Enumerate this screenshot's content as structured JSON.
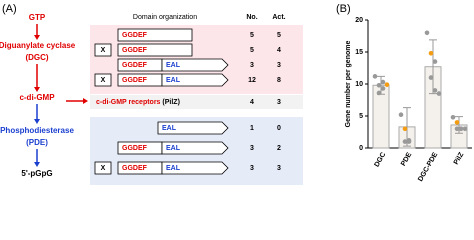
{
  "panel_a": {
    "label": "(A)",
    "pathway": [
      "GTP",
      "Diguanylate cyclase",
      "(DGC)",
      "c-di-GMP",
      "Phosphodiesterase",
      "(PDE)",
      "5'-pGpG"
    ],
    "header": [
      "Domain organization",
      "No.",
      "Act."
    ],
    "dgc_rows": [
      {
        "domains": [
          "GGDEF"
        ],
        "no": "5",
        "act": "5"
      },
      {
        "domains": [
          "X",
          "GGDEF"
        ],
        "no": "5",
        "act": "4"
      },
      {
        "domains": [
          "GGDEF",
          "EAL"
        ],
        "no": "3",
        "act": "3"
      },
      {
        "domains": [
          "X",
          "GGDEF",
          "EAL"
        ],
        "no": "12",
        "act": "8"
      }
    ],
    "receptor_row": {
      "name": "c-di-GMP receptors",
      "domain": "(PilZ)",
      "no": "4",
      "act": "3"
    },
    "pde_rows": [
      {
        "domains": [
          "EAL"
        ],
        "no": "1",
        "act": "0"
      },
      {
        "domains": [
          "GGDEF",
          "EAL"
        ],
        "no": "3",
        "act": "2"
      },
      {
        "domains": [
          "X",
          "GGDEF",
          "EAL"
        ],
        "no": "3",
        "act": "3"
      }
    ]
  },
  "chart_data": {
    "type": "bar",
    "panel_label": "(B)",
    "y_label": "Gene number per genome",
    "categories": [
      "DGC",
      "PDE",
      "DGC-PDE",
      "PilZ"
    ],
    "values": [
      9.8,
      3.3,
      12.7,
      3.6
    ],
    "errors": [
      1.4,
      3.0,
      4.2,
      1.3
    ],
    "points": [
      [
        11.2,
        9.8,
        9.3,
        8.6,
        10.3,
        9.9
      ],
      [
        5.2,
        3.0,
        1.0,
        1.0,
        1.2
      ],
      [
        18.0,
        14.8,
        13.5,
        11.0,
        9.0,
        8.5
      ],
      [
        4.8,
        4.0,
        3.0,
        3.0,
        3.0,
        3.0
      ]
    ],
    "point_colors": [
      [
        "#999",
        "#999",
        "#999",
        "#999",
        "#999",
        "#f39c12"
      ],
      [
        "#999",
        "#f39c12",
        "#999",
        "#999",
        "#999"
      ],
      [
        "#999",
        "#f39c12",
        "#999",
        "#999",
        "#999",
        "#999"
      ],
      [
        "#999",
        "#f39c12",
        "#999",
        "#999",
        "#999",
        "#999"
      ]
    ],
    "color": "#f4f1ec",
    "ylim": [
      0,
      20
    ],
    "yticks": [
      0,
      5,
      10,
      15,
      20
    ]
  }
}
